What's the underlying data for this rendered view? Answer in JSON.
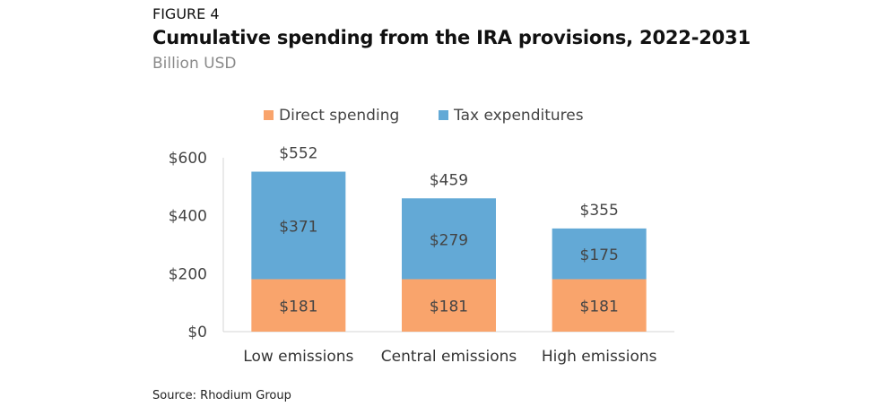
{
  "header": {
    "figure_label": "FIGURE 4",
    "title": "Cumulative spending from the IRA provisions, 2022-2031",
    "subtitle": "Billion USD"
  },
  "footer": {
    "source": "Source: Rhodium Group"
  },
  "chart_data": {
    "type": "bar",
    "stacked": true,
    "title": "Cumulative spending from the IRA provisions, 2022-2031",
    "subtitle": "Billion USD",
    "xlabel": "",
    "ylabel": "",
    "categories": [
      "Low emissions",
      "Central emissions",
      "High emissions"
    ],
    "series": [
      {
        "name": "Direct spending",
        "values": [
          181,
          181,
          181
        ],
        "labels": [
          "$181",
          "$181",
          "$181"
        ],
        "color": "#f9a46c"
      },
      {
        "name": "Tax expenditures",
        "values": [
          371,
          279,
          175
        ],
        "labels": [
          "$371",
          "$279",
          "$175"
        ],
        "color": "#63a9d6"
      }
    ],
    "totals": [
      552,
      459,
      355
    ],
    "total_labels": [
      "$552",
      "$459",
      "$355"
    ],
    "ylim": [
      0,
      600
    ],
    "yticks": [
      0,
      200,
      400,
      600
    ],
    "ytick_labels": [
      "$0",
      "$200",
      "$400",
      "$600"
    ],
    "legend_position": "top",
    "grid": false
  }
}
